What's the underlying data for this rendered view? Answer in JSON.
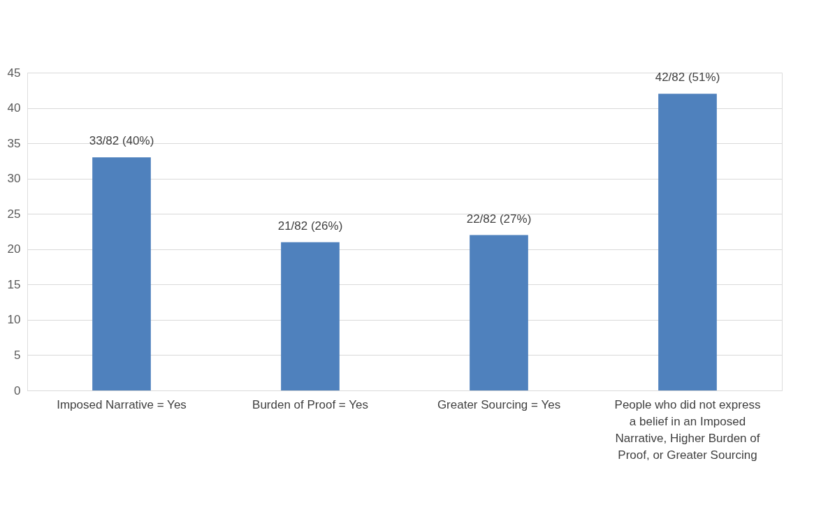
{
  "chart_data": {
    "type": "bar",
    "categories": [
      "Imposed Narrative = Yes",
      "Burden of Proof = Yes",
      "Greater Sourcing = Yes",
      "People who did not express a belief in an Imposed Narrative, Higher Burden of Proof, or Greater Sourcing"
    ],
    "values": [
      33,
      21,
      22,
      42
    ],
    "value_labels": [
      "33/82 (40%)",
      "21/82 (26%)",
      "22/82 (27%)",
      "42/82 (51%)"
    ],
    "color": "#4f81bd",
    "ylim": [
      0,
      45
    ],
    "yticks": [
      0,
      5,
      10,
      15,
      20,
      25,
      30,
      35,
      40,
      45
    ],
    "grid": "y"
  }
}
